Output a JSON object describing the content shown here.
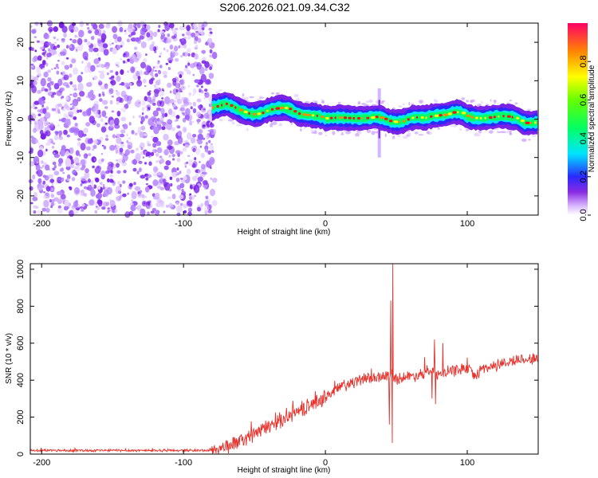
{
  "chart_data": [
    {
      "type": "heatmap",
      "title": "S206.2026.021.09.34.C32",
      "xlabel": "Height of straight line (km)",
      "ylabel": "Frequency (Hz)",
      "xlim": [
        -208,
        150
      ],
      "ylim": [
        -25,
        25
      ],
      "xticks": [
        -200,
        -100,
        0,
        100
      ],
      "xtick_labels": [
        "-200",
        "-100",
        "0",
        "100"
      ],
      "yticks": [
        -20,
        -10,
        0,
        10,
        20
      ],
      "ytick_labels": [
        "-20",
        "-10",
        "0",
        "10",
        "20"
      ],
      "noise_region_x": [
        -208,
        -78
      ],
      "ridge": {
        "x": [
          -80,
          -75,
          -70,
          -65,
          -60,
          -55,
          -50,
          -45,
          -40,
          -35,
          -30,
          -25,
          -20,
          -15,
          -10,
          -5,
          0,
          5,
          10,
          15,
          20,
          25,
          30,
          35,
          40,
          45,
          50,
          55,
          60,
          65,
          70,
          75,
          80,
          85,
          90,
          95,
          100,
          105,
          110,
          115,
          120,
          125,
          130,
          135,
          140,
          145,
          150
        ],
        "freq": [
          3,
          3.5,
          4,
          3.2,
          2.2,
          1.5,
          1.2,
          1.6,
          2.4,
          2.8,
          3,
          2.6,
          1.5,
          1.1,
          1,
          0.8,
          0.2,
          0.3,
          0.4,
          0.3,
          0.2,
          0.2,
          0.3,
          0.6,
          0.3,
          -0.5,
          -0.8,
          -0.5,
          0.3,
          0.5,
          0.3,
          0.8,
          1,
          1.2,
          1.8,
          1.8,
          0.7,
          0.3,
          0.2,
          0.4,
          0.6,
          0.8,
          0.6,
          0.2,
          -1,
          -1,
          -0.8
        ]
      },
      "spike_x": 38,
      "colorbar": {
        "label": "Normalized spectral amplitude",
        "range": [
          0,
          1
        ],
        "ticks": [
          0,
          0.2,
          0.4,
          0.6,
          0.8
        ],
        "tick_labels": [
          "0.0",
          "0.2",
          "0.4",
          "0.6",
          "0.8"
        ]
      }
    },
    {
      "type": "line",
      "xlabel": "Height of straight line (km)",
      "ylabel": "SNR (10 * v/v)",
      "xlim": [
        -208,
        150
      ],
      "ylim": [
        0,
        1030
      ],
      "xticks": [
        -200,
        -100,
        0,
        100
      ],
      "xtick_labels": [
        "-200",
        "-100",
        "0",
        "100"
      ],
      "yticks": [
        0,
        200,
        400,
        600,
        800,
        1000
      ],
      "ytick_labels": [
        "0",
        "200",
        "400",
        "600",
        "800",
        "1000"
      ],
      "series": [
        {
          "name": "SNR",
          "color": "#e8302a",
          "trend_x": [
            -208,
            -80,
            -70,
            -60,
            -50,
            -40,
            -30,
            -20,
            -10,
            0,
            10,
            20,
            30,
            40,
            45,
            50,
            60,
            70,
            75,
            80,
            90,
            100,
            105,
            110,
            120,
            130,
            140,
            150
          ],
          "trend_y": [
            20,
            20,
            40,
            70,
            110,
            150,
            190,
            230,
            265,
            310,
            360,
            390,
            410,
            420,
            425,
            410,
            420,
            440,
            450,
            430,
            450,
            470,
            420,
            460,
            480,
            500,
            515,
            515
          ],
          "spikes": [
            {
              "x": 47.5,
              "y": 1030
            },
            {
              "x": 47.0,
              "y": 60
            },
            {
              "x": 46.0,
              "y": 830
            },
            {
              "x": 45.0,
              "y": 160
            },
            {
              "x": 77.0,
              "y": 620
            },
            {
              "x": 77.5,
              "y": 270
            },
            {
              "x": 83.0,
              "y": 600
            },
            {
              "x": 75.0,
              "y": 300
            }
          ]
        }
      ]
    }
  ]
}
